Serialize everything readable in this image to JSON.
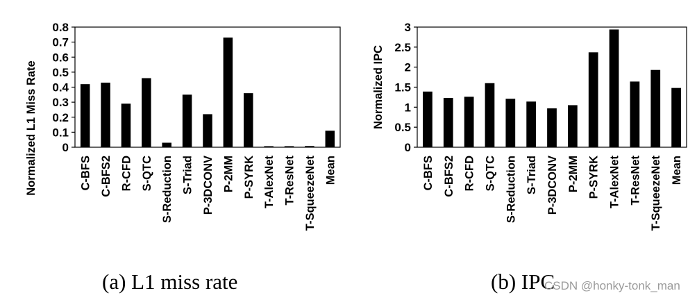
{
  "chart_data": [
    {
      "type": "bar",
      "caption": "(a) L1 miss rate",
      "ylabel": "Normalized L1 Miss Rate",
      "ylim": [
        0,
        0.8
      ],
      "yticks": [
        "0",
        "0.1",
        "0.2",
        "0.3",
        "0.4",
        "0.5",
        "0.6",
        "0.7",
        "0.8"
      ],
      "grid": false,
      "categories": [
        "C-BFS",
        "C-BFS2",
        "R-CFD",
        "S-QTC",
        "S-Reduction",
        "S-Triad",
        "P-3DCONV",
        "P-2MM",
        "P-SYRK",
        "T-AlexNet",
        "T-ResNet",
        "T-SqueezeNet",
        "Mean"
      ],
      "values": [
        0.42,
        0.43,
        0.29,
        0.46,
        0.03,
        0.35,
        0.22,
        0.73,
        0.36,
        0.005,
        0.007,
        0.008,
        0.11
      ],
      "bar_color": "#000000"
    },
    {
      "type": "bar",
      "caption": "(b) IPC",
      "ylabel": "Normalized IPC",
      "ylim": [
        0,
        3
      ],
      "yticks": [
        "0",
        "0.5",
        "1",
        "1.5",
        "2",
        "2.5",
        "3"
      ],
      "grid": false,
      "categories": [
        "C-BFS",
        "C-BFS2",
        "R-CFD",
        "S-QTC",
        "S-Reduction",
        "S-Triad",
        "P-3DCONV",
        "P-2MM",
        "P-SYRK",
        "T-AlexNet",
        "T-ResNet",
        "T-SqueezeNet",
        "Mean"
      ],
      "values": [
        1.39,
        1.23,
        1.26,
        1.6,
        1.21,
        1.14,
        0.97,
        1.05,
        2.37,
        2.94,
        1.64,
        1.93,
        1.48
      ],
      "bar_color": "#000000"
    }
  ],
  "watermark": "CSDN @honky-tonk_man"
}
